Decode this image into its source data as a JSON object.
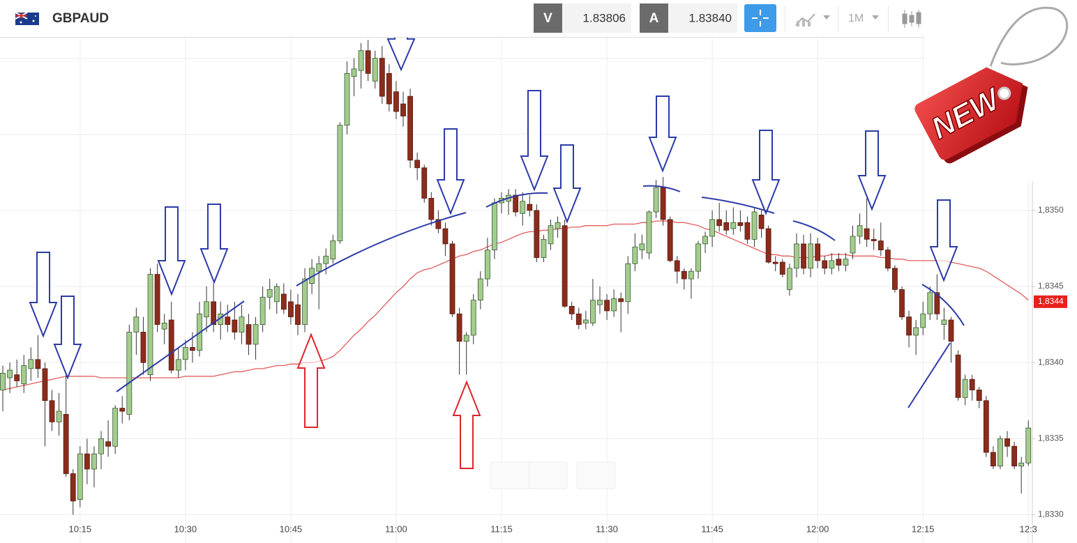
{
  "header": {
    "symbol": "GBPAUD",
    "sell_label": "V",
    "sell_price": "1.83806",
    "buy_label": "A",
    "buy_price": "1.83840",
    "timeframe": "1M"
  },
  "badge": "NEW",
  "chart_data": {
    "type": "candlestick",
    "categories": [
      null,
      null,
      null,
      null,
      null,
      null,
      null,
      null,
      null,
      null,
      null,
      "10:15",
      null,
      null,
      null,
      null,
      null,
      null,
      null,
      null,
      null,
      null,
      null,
      null,
      null,
      null,
      "10:30",
      null,
      null,
      null,
      null,
      null,
      null,
      null,
      null,
      null,
      null,
      null,
      null,
      null,
      null,
      "10:45",
      null,
      null,
      null,
      null,
      null,
      null,
      null,
      null,
      null,
      null,
      null,
      null,
      null,
      null,
      "11:00",
      null,
      null,
      null,
      null,
      null,
      null,
      null,
      null,
      null,
      null,
      null,
      null,
      null,
      null,
      "11:15",
      null,
      null,
      null,
      null,
      null,
      null,
      null,
      null,
      null,
      null,
      null,
      null,
      null,
      null,
      "11:30",
      null,
      null,
      null,
      null,
      null,
      null,
      null,
      null,
      null,
      null,
      null,
      null,
      null,
      null,
      "11:45",
      null,
      null,
      null,
      null,
      null,
      null,
      null,
      null,
      null,
      null,
      null,
      null,
      null,
      null,
      "12:00",
      null,
      null,
      null,
      null,
      null,
      null,
      null,
      null,
      null,
      null,
      null,
      null,
      null,
      null,
      "12:15",
      null,
      null,
      null,
      null,
      null,
      null,
      null,
      null,
      null,
      null,
      null,
      null,
      null,
      null,
      "12:3"
    ],
    "open": [
      1.83382,
      1.8339,
      1.83392,
      1.83386,
      1.83396,
      1.83402,
      1.83396,
      1.83375,
      1.83361,
      1.83366,
      1.83327,
      1.8331,
      1.8334,
      1.8333,
      1.8334,
      1.83348,
      1.83345,
      1.8337,
      1.83366,
      1.8342,
      1.8342,
      1.83392,
      1.83458,
      1.83422,
      1.83428,
      1.83395,
      1.83402,
      1.8341,
      1.83408,
      1.8343,
      1.8344,
      1.83425,
      1.8343,
      1.83428,
      1.8342,
      1.83425,
      1.83412,
      1.83425,
      1.83443,
      1.8344,
      1.83445,
      1.8344,
      1.83438,
      1.83425,
      1.83452,
      1.8346,
      1.83465,
      1.83468,
      1.8348,
      1.83556,
      1.83588,
      1.83592,
      1.83605,
      1.83585,
      1.836,
      1.8359,
      1.83578,
      1.8357,
      1.83575,
      1.83533,
      1.83528,
      1.83508,
      1.83494,
      1.83488,
      1.83478,
      1.83432,
      1.83414,
      1.83418,
      1.83441,
      1.83455,
      1.83474,
      1.83505,
      1.83506,
      1.8351,
      1.83498,
      1.83504,
      1.835,
      1.83469,
      1.83478,
      1.83488,
      1.8349,
      1.83437,
      1.83432,
      1.83426,
      1.83426,
      1.83438,
      1.83441,
      1.83434,
      1.83442,
      1.8344,
      1.83465,
      1.83474,
      1.83472,
      1.83499,
      1.83515,
      1.83494,
      1.83467,
      1.8346,
      1.83455,
      1.8346,
      1.83478,
      1.83483,
      1.83494,
      1.83492,
      1.83488,
      1.83492,
      1.83492,
      1.83481,
      1.83497,
      1.83488,
      1.83466,
      1.83466,
      1.83448,
      1.83462,
      1.83478,
      1.83462,
      1.83478,
      1.83467,
      1.83462,
      1.83468,
      1.83464,
      1.83472,
      1.83483,
      1.83488,
      1.83481,
      1.8348,
      1.83474,
      1.83462,
      1.83448,
      1.8343,
      1.83418,
      1.83423,
      1.83432,
      1.83446,
      1.83425,
      1.83428,
      1.83405,
      1.83377,
      1.83389,
      1.83382,
      1.83375,
      1.83341,
      1.83332,
      1.8335,
      1.83345,
      1.83332,
      1.83334
    ],
    "high": [
      1.83398,
      1.834,
      1.83402,
      1.83405,
      1.8341,
      1.83418,
      1.834,
      1.83382,
      1.8338,
      1.83392,
      1.8333,
      1.83345,
      1.8335,
      1.83345,
      1.83355,
      1.83362,
      1.83372,
      1.83378,
      1.83425,
      1.83436,
      1.8343,
      1.83462,
      1.83465,
      1.83432,
      1.8344,
      1.8341,
      1.83415,
      1.8342,
      1.8344,
      1.8345,
      1.83452,
      1.8344,
      1.83438,
      1.8344,
      1.83438,
      1.83432,
      1.8343,
      1.8345,
      1.83455,
      1.83452,
      1.83452,
      1.83448,
      1.83445,
      1.83462,
      1.83468,
      1.8347,
      1.83475,
      1.83484,
      1.83558,
      1.83598,
      1.836,
      1.8361,
      1.83612,
      1.83605,
      1.83608,
      1.83596,
      1.83585,
      1.83578,
      1.8358,
      1.83538,
      1.8353,
      1.83512,
      1.835,
      1.83492,
      1.8348,
      1.83436,
      1.8342,
      1.83445,
      1.8346,
      1.83482,
      1.83508,
      1.83512,
      1.83514,
      1.83514,
      1.83512,
      1.8351,
      1.83504,
      1.83484,
      1.83494,
      1.83496,
      1.83494,
      1.8344,
      1.83436,
      1.83434,
      1.83455,
      1.8345,
      1.83445,
      1.83448,
      1.83446,
      1.8347,
      1.83485,
      1.83484,
      1.835,
      1.8352,
      1.83522,
      1.83496,
      1.8347,
      1.83462,
      1.83462,
      1.8348,
      1.83486,
      1.835,
      1.83505,
      1.835,
      1.83502,
      1.835,
      1.83496,
      1.83502,
      1.835,
      1.8349,
      1.8347,
      1.83468,
      1.83465,
      1.83485,
      1.83484,
      1.83485,
      1.83482,
      1.8347,
      1.83472,
      1.83472,
      1.83472,
      1.8349,
      1.83498,
      1.83508,
      1.83488,
      1.83492,
      1.83476,
      1.83464,
      1.8345,
      1.83434,
      1.83428,
      1.8344,
      1.8345,
      1.83458,
      1.83436,
      1.8343,
      1.83408,
      1.83392,
      1.83392,
      1.83384,
      1.83378,
      1.83345,
      1.83352,
      1.83355,
      1.83348,
      1.83338,
      1.83362
    ],
    "low": [
      1.83368,
      1.8338,
      1.83384,
      1.8338,
      1.83388,
      1.8339,
      1.83345,
      1.83355,
      1.83352,
      1.83325,
      1.833,
      1.83305,
      1.8332,
      1.83318,
      1.8333,
      1.83338,
      1.8334,
      1.8336,
      1.83362,
      1.83405,
      1.83392,
      1.83388,
      1.8342,
      1.83412,
      1.83393,
      1.8339,
      1.83395,
      1.834,
      1.83404,
      1.8342,
      1.8342,
      1.83415,
      1.8342,
      1.83415,
      1.83412,
      1.83405,
      1.83402,
      1.8342,
      1.83435,
      1.83432,
      1.83432,
      1.83425,
      1.83418,
      1.8342,
      1.83445,
      1.83435,
      1.83458,
      1.83465,
      1.83478,
      1.8355,
      1.83575,
      1.8358,
      1.83585,
      1.8358,
      1.8357,
      1.83565,
      1.8356,
      1.83555,
      1.83528,
      1.8352,
      1.83505,
      1.8349,
      1.83485,
      1.8347,
      1.8343,
      1.83392,
      1.83392,
      1.83412,
      1.83435,
      1.8345,
      1.83468,
      1.83498,
      1.83497,
      1.83496,
      1.8349,
      1.83496,
      1.83466,
      1.83466,
      1.83474,
      1.83482,
      1.83436,
      1.83428,
      1.83422,
      1.83422,
      1.83424,
      1.83432,
      1.83428,
      1.8343,
      1.8342,
      1.83432,
      1.8346,
      1.83468,
      1.83468,
      1.83495,
      1.8349,
      1.83466,
      1.83452,
      1.83448,
      1.83442,
      1.83455,
      1.83472,
      1.83476,
      1.83486,
      1.83484,
      1.83484,
      1.83486,
      1.83478,
      1.83476,
      1.83482,
      1.83465,
      1.8346,
      1.83456,
      1.83444,
      1.83456,
      1.83458,
      1.83456,
      1.83462,
      1.83458,
      1.83458,
      1.8346,
      1.8346,
      1.83468,
      1.83478,
      1.83476,
      1.83474,
      1.8347,
      1.8346,
      1.83446,
      1.83428,
      1.8341,
      1.83405,
      1.83418,
      1.83428,
      1.83428,
      1.83415,
      1.834,
      1.83375,
      1.83372,
      1.83375,
      1.8337,
      1.83338,
      1.8333,
      1.8333,
      1.83338,
      1.8333,
      1.83314,
      1.83332
    ],
    "close": [
      1.83393,
      1.83395,
      1.83388,
      1.83398,
      1.83402,
      1.83396,
      1.83375,
      1.83361,
      1.83368,
      1.83327,
      1.83309,
      1.8334,
      1.8333,
      1.8334,
      1.8335,
      1.83345,
      1.8337,
      1.83368,
      1.8342,
      1.8343,
      1.834,
      1.83458,
      1.83425,
      1.83426,
      1.83395,
      1.83402,
      1.8341,
      1.83408,
      1.83432,
      1.8344,
      1.83425,
      1.83432,
      1.83425,
      1.8342,
      1.8343,
      1.83412,
      1.83425,
      1.83443,
      1.83448,
      1.8345,
      1.83435,
      1.8343,
      1.83425,
      1.83455,
      1.83462,
      1.83465,
      1.8347,
      1.8348,
      1.83556,
      1.8359,
      1.83593,
      1.83605,
      1.8359,
      1.836,
      1.83575,
      1.8357,
      1.83565,
      1.83562,
      1.83533,
      1.83528,
      1.83508,
      1.83494,
      1.83488,
      1.83478,
      1.83432,
      1.83414,
      1.83418,
      1.83441,
      1.83455,
      1.83474,
      1.83505,
      1.83508,
      1.8351,
      1.83499,
      1.83506,
      1.835,
      1.83469,
      1.83481,
      1.8349,
      1.83492,
      1.83437,
      1.83432,
      1.83425,
      1.83428,
      1.83441,
      1.83441,
      1.83434,
      1.83442,
      1.8344,
      1.83465,
      1.83476,
      1.83478,
      1.83499,
      1.83515,
      1.83494,
      1.83467,
      1.8346,
      1.83455,
      1.8346,
      1.83478,
      1.83483,
      1.83494,
      1.8349,
      1.83487,
      1.83492,
      1.8349,
      1.83481,
      1.83499,
      1.83488,
      1.83466,
      1.83465,
      1.83458,
      1.83462,
      1.83478,
      1.83462,
      1.83478,
      1.83467,
      1.83462,
      1.83467,
      1.83464,
      1.83468,
      1.83483,
      1.8349,
      1.83481,
      1.8348,
      1.83474,
      1.83462,
      1.83448,
      1.8343,
      1.83418,
      1.83423,
      1.83432,
      1.83446,
      1.83432,
      1.83428,
      1.83414,
      1.83377,
      1.83389,
      1.83382,
      1.83375,
      1.83341,
      1.83332,
      1.8335,
      1.83345,
      1.83332,
      1.83334,
      1.83357
    ],
    "up_color": "#a3cc8f",
    "down_color": "#8b2c1c",
    "moving_average": {
      "color": "#e25c5c",
      "values": [
        1.83382,
        1.83383,
        1.83384,
        1.83385,
        1.83386,
        1.83387,
        1.83388,
        1.83389,
        1.8339,
        1.83391,
        1.83391,
        1.83391,
        1.83391,
        1.83391,
        1.8339,
        1.8339,
        1.8339,
        1.8339,
        1.8339,
        1.8339,
        1.8339,
        1.8339,
        1.8339,
        1.8339,
        1.8339,
        1.8339,
        1.83391,
        1.83391,
        1.83391,
        1.83391,
        1.83391,
        1.83392,
        1.83393,
        1.83394,
        1.83394,
        1.83395,
        1.83396,
        1.83396,
        1.83397,
        1.83398,
        1.83398,
        1.83399,
        1.83399,
        1.834,
        1.834,
        1.83401,
        1.83402,
        1.83404,
        1.83408,
        1.83413,
        1.83418,
        1.83422,
        1.83427,
        1.83431,
        1.83436,
        1.83441,
        1.83446,
        1.8345,
        1.83455,
        1.83459,
        1.83461,
        1.83462,
        1.83464,
        1.83466,
        1.83468,
        1.8347,
        1.83471,
        1.83473,
        1.83474,
        1.83476,
        1.83478,
        1.83479,
        1.83481,
        1.83483,
        1.83485,
        1.83486,
        1.83486,
        1.83487,
        1.83487,
        1.83488,
        1.83488,
        1.83489,
        1.83489,
        1.8349,
        1.8349,
        1.8349,
        1.8349,
        1.83491,
        1.83491,
        1.83491,
        1.83491,
        1.83492,
        1.83492,
        1.83493,
        1.83493,
        1.83493,
        1.83492,
        1.83492,
        1.83491,
        1.8349,
        1.83488,
        1.83487,
        1.83485,
        1.83483,
        1.83481,
        1.83479,
        1.83477,
        1.83475,
        1.83473,
        1.83471,
        1.83471,
        1.8347,
        1.8347,
        1.83469,
        1.83469,
        1.83469,
        1.8347,
        1.8347,
        1.83471,
        1.83471,
        1.83471,
        1.8347,
        1.8347,
        1.8347,
        1.8347,
        1.83469,
        1.83469,
        1.83468,
        1.83468,
        1.83467,
        1.83467,
        1.83467,
        1.83467,
        1.83467,
        1.83467,
        1.83466,
        1.83465,
        1.83464,
        1.83463,
        1.83462,
        1.8346,
        1.83457,
        1.83454,
        1.83451,
        1.83448,
        1.83445,
        1.83441
      ]
    },
    "ylim": [
      1.83297,
      1.83614
    ],
    "yticks": [
      {
        "value": 1.833,
        "label": "1,8330"
      },
      {
        "value": 1.8335,
        "label": "1,8335"
      },
      {
        "value": 1.834,
        "label": "1,8340"
      },
      {
        "value": 1.8345,
        "label": "1,8345"
      },
      {
        "value": 1.835,
        "label": "1,8350"
      }
    ],
    "ygrid": [
      1.8355,
      1.836
    ],
    "grid": true,
    "last_price": {
      "value": 1.8344,
      "label": "1,8344",
      "color": "#e8211b"
    }
  }
}
